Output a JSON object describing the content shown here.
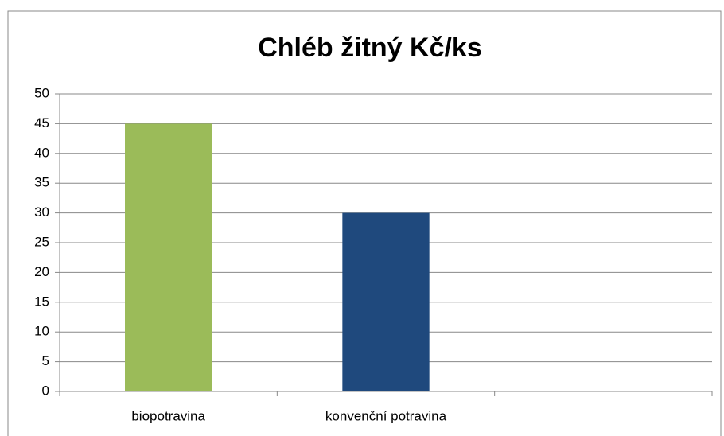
{
  "chart_data": {
    "type": "bar",
    "title": "Chléb žitný Kč/ks",
    "categories": [
      "biopotravina",
      "konvenční potravina",
      null
    ],
    "values": [
      45,
      30,
      null
    ],
    "colors": [
      "#9bbb59",
      "#1f497d",
      null
    ],
    "ylim": [
      0,
      50
    ],
    "yticks": [
      0,
      5,
      10,
      15,
      20,
      25,
      30,
      35,
      40,
      45,
      50
    ],
    "grid": true
  }
}
